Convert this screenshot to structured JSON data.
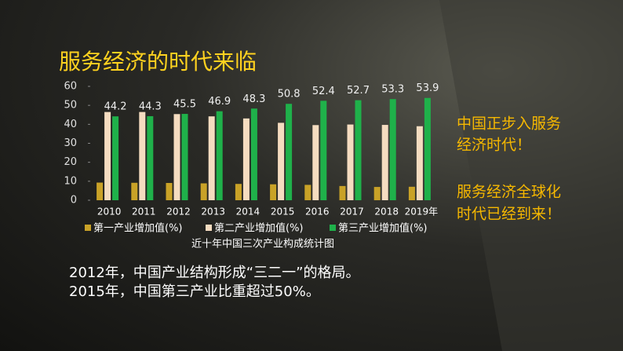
{
  "slide": {
    "title": "服务经济的时代来临",
    "side_notes": [
      [
        "中国正步入服务",
        "经济时代！"
      ],
      [
        "服务经济全球化",
        "时代已经到来！"
      ]
    ],
    "body_lines": [
      "2012年，中国产业结构形成“三二一”的格局。",
      "2015年，中国第三产业比重超过50%。"
    ]
  },
  "chart_data": {
    "type": "bar",
    "caption": "近十年中国三次产业构成统计图",
    "categories": [
      "2010",
      "2011",
      "2012",
      "2013",
      "2014",
      "2015",
      "2016",
      "2017",
      "2018",
      "2019年"
    ],
    "series": [
      {
        "name": "第一产业增加值(%)",
        "color": "#c9a227",
        "values": [
          9.3,
          9.2,
          9.1,
          8.9,
          8.6,
          8.4,
          8.1,
          7.5,
          7.0,
          7.1
        ]
      },
      {
        "name": "第二产业增加值(%)",
        "color": "#f5dcc0",
        "values": [
          46.5,
          46.5,
          45.4,
          44.2,
          43.1,
          40.8,
          39.6,
          39.9,
          39.7,
          39.0
        ]
      },
      {
        "name": "第三产业增加值(%)",
        "color": "#1fb14a",
        "values": [
          44.2,
          44.3,
          45.5,
          46.9,
          48.3,
          50.8,
          52.4,
          52.7,
          53.3,
          53.9
        ],
        "show_labels": true
      }
    ],
    "ylim": [
      0,
      60
    ],
    "yticks": [
      0,
      10,
      20,
      30,
      40,
      50,
      60
    ]
  }
}
